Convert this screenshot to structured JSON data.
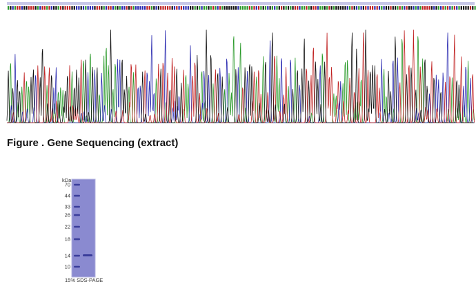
{
  "caption": "Figure . Gene Sequencing (extract)",
  "gel": {
    "unit": "kDa",
    "markers": [
      "70",
      "44",
      "33",
      "26",
      "22",
      "18",
      "14",
      "10"
    ],
    "footer": "15% SDS-PAGE"
  }
}
